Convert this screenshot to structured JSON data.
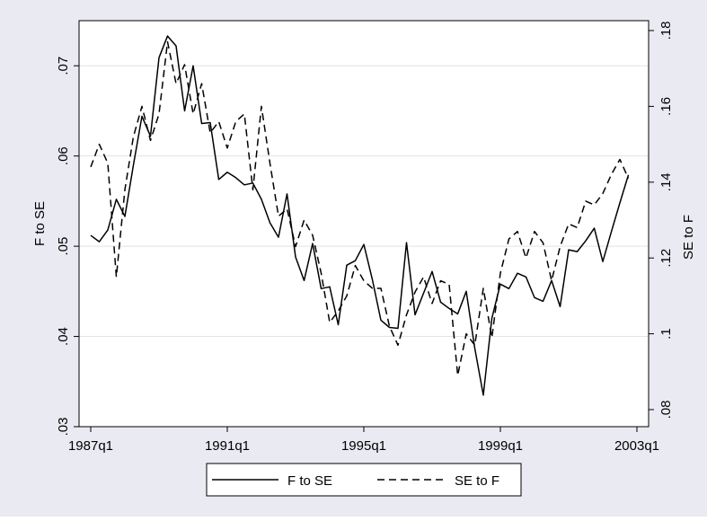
{
  "colors": {
    "outer_background": "#eaeaf2",
    "plot_background": "#ffffff",
    "gridline": "#e3e3e3",
    "series_line": "#000000"
  },
  "chart_data": {
    "type": "line",
    "x_axis": {
      "label": "",
      "ticks": [
        "1987q1",
        "1991q1",
        "1995q1",
        "1999q1",
        "2003q1"
      ],
      "range": [
        "1987q1",
        "2002q4"
      ]
    },
    "y_axis_left": {
      "label": "F to SE",
      "range": [
        0.03,
        0.075
      ],
      "ticks": [
        0.03,
        0.04,
        0.05,
        0.06,
        0.07
      ],
      "tick_labels": [
        ".03",
        ".04",
        ".05",
        ".06",
        ".07"
      ]
    },
    "y_axis_right": {
      "label": "SE to F",
      "range": [
        0.08,
        0.18
      ],
      "ticks": [
        0.08,
        0.1,
        0.12,
        0.14,
        0.16,
        0.18
      ],
      "tick_labels": [
        ".08",
        ".1",
        ".12",
        ".14",
        ".16",
        ".18"
      ]
    },
    "grid": true,
    "legend": {
      "position": "bottom",
      "entries": [
        {
          "name": "F to SE",
          "style": "solid"
        },
        {
          "name": "SE to F",
          "style": "dashed"
        }
      ]
    },
    "series": [
      {
        "name": "F to SE",
        "axis": "left",
        "style": "solid",
        "x": [
          "1987q1",
          "1987q2",
          "1987q3",
          "1987q4",
          "1988q1",
          "1988q2",
          "1988q3",
          "1988q4",
          "1989q1",
          "1989q2",
          "1989q3",
          "1989q4",
          "1990q1",
          "1990q2",
          "1990q3",
          "1990q4",
          "1991q1",
          "1991q2",
          "1991q3",
          "1991q4",
          "1992q1",
          "1992q2",
          "1992q3",
          "1992q4",
          "1993q1",
          "1993q2",
          "1993q3",
          "1993q4",
          "1994q1",
          "1994q2",
          "1994q3",
          "1994q4",
          "1995q1",
          "1995q2",
          "1995q3",
          "1995q4",
          "1996q1",
          "1996q2",
          "1996q3",
          "1996q4",
          "1997q1",
          "1997q2",
          "1997q3",
          "1997q4",
          "1998q1",
          "1998q2",
          "1998q3",
          "1998q4",
          "1999q1",
          "1999q2",
          "1999q3",
          "1999q4",
          "2000q1",
          "2000q2",
          "2000q3",
          "2000q4",
          "2001q1",
          "2001q2",
          "2001q3",
          "2001q4",
          "2002q1",
          "2002q2",
          "2002q3",
          "2002q4"
        ],
        "values": [
          0.0512,
          0.0505,
          0.0518,
          0.0552,
          0.0533,
          0.059,
          0.0644,
          0.0622,
          0.0709,
          0.0733,
          0.0722,
          0.065,
          0.07,
          0.0636,
          0.0637,
          0.0574,
          0.0582,
          0.0576,
          0.0568,
          0.057,
          0.0552,
          0.0526,
          0.051,
          0.0558,
          0.0488,
          0.0462,
          0.0503,
          0.0453,
          0.0455,
          0.0413,
          0.0479,
          0.0484,
          0.0502,
          0.0463,
          0.0418,
          0.041,
          0.0409,
          0.0504,
          0.0424,
          0.0448,
          0.0472,
          0.0438,
          0.0431,
          0.0425,
          0.045,
          0.0387,
          0.0335,
          0.042,
          0.0458,
          0.0453,
          0.047,
          0.0466,
          0.0443,
          0.0439,
          0.0462,
          0.0433,
          0.0496,
          0.0494,
          0.0506,
          0.052,
          0.0483,
          0.0516,
          0.0548,
          0.0579
        ]
      },
      {
        "name": "SE to F",
        "axis": "right",
        "style": "dashed",
        "x": [
          "1987q1",
          "1987q2",
          "1987q3",
          "1987q4",
          "1988q1",
          "1988q2",
          "1988q3",
          "1988q4",
          "1989q1",
          "1989q2",
          "1989q3",
          "1989q4",
          "1990q1",
          "1990q2",
          "1990q3",
          "1990q4",
          "1991q1",
          "1991q2",
          "1991q3",
          "1991q4",
          "1992q1",
          "1992q2",
          "1992q3",
          "1992q4",
          "1993q1",
          "1993q2",
          "1993q3",
          "1993q4",
          "1994q1",
          "1994q2",
          "1994q3",
          "1994q4",
          "1995q1",
          "1995q2",
          "1995q3",
          "1995q4",
          "1996q1",
          "1996q2",
          "1996q3",
          "1996q4",
          "1997q1",
          "1997q2",
          "1997q3",
          "1997q4",
          "1998q1",
          "1998q2",
          "1998q3",
          "1998q4",
          "1999q1",
          "1999q2",
          "1999q3",
          "1999q4",
          "2000q1",
          "2000q2",
          "2000q3",
          "2000q4",
          "2001q1",
          "2001q2",
          "2001q3",
          "2001q4",
          "2002q1",
          "2002q2",
          "2002q3",
          "2002q4"
        ],
        "values": [
          0.144,
          0.15,
          0.145,
          0.115,
          0.138,
          0.152,
          0.16,
          0.151,
          0.158,
          0.177,
          0.166,
          0.171,
          0.158,
          0.166,
          0.153,
          0.156,
          0.149,
          0.156,
          0.158,
          0.138,
          0.16,
          0.145,
          0.131,
          0.133,
          0.123,
          0.13,
          0.126,
          0.116,
          0.103,
          0.106,
          0.11,
          0.118,
          0.114,
          0.112,
          0.112,
          0.102,
          0.097,
          0.105,
          0.111,
          0.115,
          0.108,
          0.114,
          0.113,
          0.089,
          0.1,
          0.097,
          0.112,
          0.099,
          0.116,
          0.125,
          0.127,
          0.12,
          0.127,
          0.124,
          0.114,
          0.123,
          0.129,
          0.128,
          0.135,
          0.134,
          0.137,
          0.142,
          0.146,
          0.141
        ]
      }
    ]
  }
}
